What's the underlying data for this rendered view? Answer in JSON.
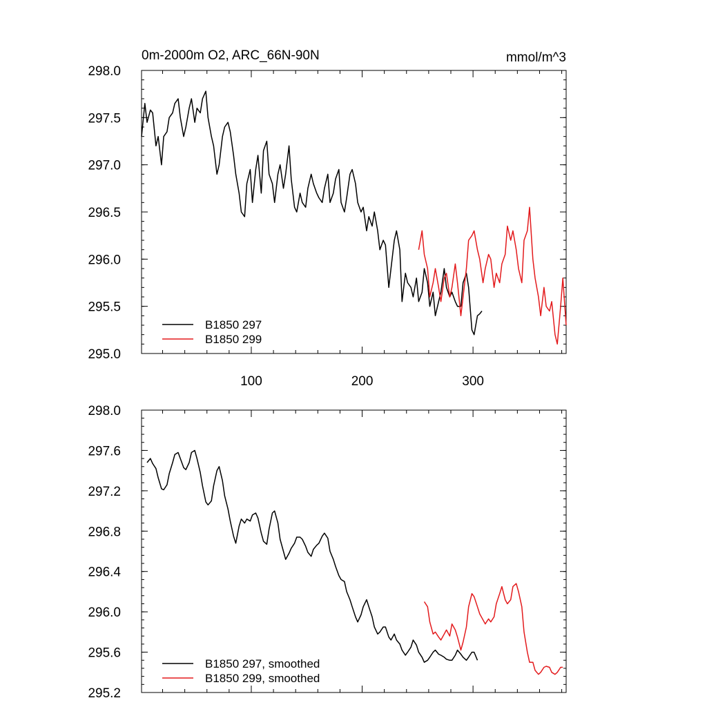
{
  "chart_data": [
    {
      "type": "line",
      "title": "0m-2000m O2, ARC_66N-90N",
      "units": "mmol/m^3",
      "xlim": [
        1,
        384
      ],
      "ylim": [
        295.0,
        298.0
      ],
      "x_ticks": [
        100,
        200,
        300
      ],
      "y_ticks": [
        "298.0",
        "297.5",
        "297.0",
        "296.5",
        "296.0",
        "295.5",
        "295.0"
      ],
      "y_tick_values": [
        298.0,
        297.5,
        297.0,
        296.5,
        296.0,
        295.5,
        295.0
      ],
      "legend": "bottom-left",
      "series": [
        {
          "name": "B1850 297",
          "color": "#000000",
          "x": [
            1,
            4,
            6,
            9,
            11,
            14,
            16,
            19,
            21,
            24,
            26,
            29,
            31,
            34,
            36,
            39,
            41,
            44,
            46,
            49,
            51,
            54,
            56,
            59,
            61,
            64,
            66,
            69,
            71,
            74,
            76,
            79,
            81,
            84,
            86,
            89,
            91,
            94,
            96,
            99,
            101,
            104,
            106,
            109,
            111,
            114,
            116,
            119,
            121,
            124,
            126,
            129,
            131,
            134,
            136,
            139,
            141,
            144,
            146,
            149,
            151,
            154,
            156,
            159,
            161,
            164,
            166,
            169,
            171,
            174,
            176,
            179,
            181,
            184,
            186,
            189,
            191,
            194,
            196,
            199,
            201,
            204,
            206,
            209,
            211,
            214,
            216,
            219,
            221,
            224,
            226,
            229,
            231,
            234,
            236,
            239,
            241,
            244,
            246,
            249,
            251,
            254,
            256,
            259,
            261,
            264,
            266,
            269,
            271,
            274,
            276,
            279,
            281,
            284,
            286,
            289,
            291,
            294,
            296,
            299,
            301,
            304,
            306,
            308
          ],
          "y": [
            297.3,
            297.65,
            297.45,
            297.58,
            297.55,
            297.2,
            297.3,
            297.0,
            297.3,
            297.35,
            297.5,
            297.55,
            297.65,
            297.7,
            297.5,
            297.3,
            297.4,
            297.6,
            297.7,
            297.45,
            297.6,
            297.55,
            297.7,
            297.78,
            297.5,
            297.3,
            297.2,
            296.9,
            297.0,
            297.3,
            297.4,
            297.45,
            297.35,
            297.1,
            296.9,
            296.7,
            296.5,
            296.45,
            296.8,
            296.95,
            296.6,
            296.95,
            297.1,
            296.7,
            297.15,
            297.25,
            296.9,
            296.8,
            296.6,
            296.9,
            297.0,
            296.75,
            296.9,
            297.2,
            296.85,
            296.55,
            296.5,
            296.7,
            296.6,
            296.55,
            296.75,
            296.9,
            296.8,
            296.7,
            296.65,
            296.6,
            296.75,
            296.9,
            296.6,
            296.7,
            296.85,
            296.95,
            296.6,
            296.5,
            296.65,
            296.9,
            296.95,
            296.8,
            296.6,
            296.5,
            296.55,
            296.3,
            296.45,
            296.35,
            296.5,
            296.3,
            296.1,
            296.2,
            296.15,
            295.7,
            295.9,
            296.2,
            296.3,
            296.1,
            295.55,
            295.85,
            295.75,
            295.7,
            295.6,
            295.8,
            295.55,
            295.65,
            295.9,
            295.75,
            295.5,
            295.65,
            295.4,
            295.55,
            295.65,
            295.9,
            295.7,
            295.6,
            295.65,
            295.55,
            295.5,
            295.5,
            295.75,
            295.85,
            295.7,
            295.25,
            295.2,
            295.4,
            295.42,
            295.45
          ]
        },
        {
          "name": "B1850 299",
          "color": "#e31a1c",
          "x": [
            251,
            254,
            256,
            259,
            261,
            264,
            266,
            269,
            271,
            274,
            276,
            279,
            281,
            284,
            286,
            289,
            291,
            294,
            296,
            299,
            301,
            304,
            306,
            309,
            311,
            314,
            316,
            319,
            321,
            324,
            326,
            329,
            331,
            334,
            336,
            339,
            341,
            344,
            346,
            349,
            351,
            354,
            356,
            359,
            361,
            364,
            366,
            369,
            371,
            374,
            376,
            379,
            381,
            384
          ],
          "y": [
            296.1,
            296.3,
            296.05,
            295.9,
            295.6,
            295.75,
            295.9,
            295.7,
            295.55,
            295.8,
            295.85,
            295.6,
            295.7,
            295.95,
            295.75,
            295.4,
            295.6,
            295.9,
            296.2,
            296.25,
            296.3,
            296.1,
            296.0,
            295.75,
            295.9,
            296.05,
            296.0,
            295.7,
            295.85,
            295.75,
            295.95,
            296.05,
            296.35,
            296.2,
            296.3,
            296.1,
            295.9,
            295.75,
            296.2,
            296.3,
            296.55,
            296.0,
            295.8,
            295.6,
            295.4,
            295.7,
            295.5,
            295.45,
            295.55,
            295.2,
            295.1,
            295.5,
            295.8,
            295.3
          ]
        }
      ]
    },
    {
      "type": "line",
      "xlim": [
        1,
        384
      ],
      "ylim": [
        295.2,
        298.0
      ],
      "x_ticks": [
        100,
        200,
        300
      ],
      "y_ticks": [
        "298.0",
        "297.6",
        "297.2",
        "296.8",
        "296.4",
        "296.0",
        "295.6",
        "295.2"
      ],
      "y_tick_values": [
        298.0,
        297.6,
        297.2,
        296.8,
        296.4,
        296.0,
        295.6,
        295.2
      ],
      "legend": "bottom-left",
      "series": [
        {
          "name": "B1850 297, smoothed",
          "color": "#000000",
          "x": [
            6,
            9,
            11,
            14,
            16,
            19,
            21,
            24,
            26,
            29,
            31,
            34,
            36,
            39,
            41,
            44,
            46,
            49,
            51,
            54,
            56,
            59,
            61,
            64,
            66,
            69,
            71,
            74,
            76,
            79,
            81,
            84,
            86,
            89,
            91,
            94,
            96,
            99,
            101,
            104,
            106,
            109,
            111,
            114,
            116,
            119,
            121,
            124,
            126,
            129,
            131,
            134,
            136,
            139,
            141,
            144,
            146,
            149,
            151,
            154,
            156,
            159,
            161,
            164,
            166,
            169,
            171,
            174,
            176,
            179,
            181,
            184,
            186,
            189,
            191,
            194,
            196,
            199,
            201,
            204,
            206,
            209,
            211,
            214,
            216,
            219,
            221,
            224,
            226,
            229,
            231,
            234,
            236,
            239,
            241,
            244,
            246,
            249,
            251,
            254,
            256,
            259,
            261,
            264,
            266,
            269,
            271,
            274,
            276,
            279,
            281,
            284,
            286,
            289,
            291,
            294,
            296,
            299,
            301,
            304
          ],
          "y": [
            297.48,
            297.52,
            297.47,
            297.42,
            297.33,
            297.22,
            297.21,
            297.26,
            297.37,
            297.48,
            297.56,
            297.58,
            297.52,
            297.43,
            297.41,
            297.48,
            297.58,
            297.6,
            297.52,
            297.38,
            297.25,
            297.09,
            297.06,
            297.1,
            297.25,
            297.4,
            297.44,
            297.3,
            297.15,
            297.02,
            296.9,
            296.75,
            296.68,
            296.85,
            296.92,
            296.88,
            296.92,
            296.9,
            296.96,
            296.98,
            296.93,
            296.78,
            296.7,
            296.67,
            296.82,
            296.98,
            297.0,
            296.88,
            296.72,
            296.6,
            296.52,
            296.58,
            296.63,
            296.68,
            296.74,
            296.74,
            296.72,
            296.65,
            296.59,
            296.55,
            296.62,
            296.66,
            296.68,
            296.75,
            296.78,
            296.73,
            296.6,
            296.52,
            296.45,
            296.36,
            296.32,
            296.3,
            296.2,
            296.12,
            296.05,
            295.95,
            295.9,
            295.97,
            296.05,
            296.12,
            296.05,
            295.95,
            295.85,
            295.78,
            295.8,
            295.85,
            295.85,
            295.75,
            295.72,
            295.78,
            295.72,
            295.68,
            295.62,
            295.57,
            295.6,
            295.65,
            295.72,
            295.67,
            295.6,
            295.55,
            295.5,
            295.52,
            295.55,
            295.6,
            295.62,
            295.58,
            295.57,
            295.55,
            295.53,
            295.52,
            295.52,
            295.57,
            295.62,
            295.58,
            295.55,
            295.52,
            295.55,
            295.6,
            295.6,
            295.52
          ]
        },
        {
          "name": "B1850 299, smoothed",
          "color": "#e31a1c",
          "x": [
            256,
            259,
            261,
            264,
            266,
            269,
            271,
            274,
            276,
            279,
            281,
            284,
            286,
            289,
            291,
            294,
            296,
            299,
            301,
            304,
            306,
            309,
            311,
            314,
            316,
            319,
            321,
            324,
            326,
            329,
            331,
            334,
            336,
            339,
            341,
            344,
            346,
            349,
            351,
            354,
            356,
            359,
            361,
            364,
            366,
            369,
            371,
            374,
            376,
            379,
            381
          ],
          "y": [
            296.1,
            296.05,
            295.9,
            295.78,
            295.8,
            295.75,
            295.72,
            295.78,
            295.82,
            295.76,
            295.88,
            295.82,
            295.75,
            295.62,
            295.7,
            295.85,
            296.05,
            296.18,
            296.15,
            296.05,
            295.98,
            295.92,
            295.88,
            295.93,
            295.9,
            295.95,
            296.08,
            296.18,
            296.25,
            296.12,
            296.08,
            296.12,
            296.25,
            296.28,
            296.2,
            296.05,
            295.8,
            295.6,
            295.5,
            295.5,
            295.42,
            295.38,
            295.4,
            295.45,
            295.46,
            295.45,
            295.4,
            295.38,
            295.4,
            295.45,
            295.45
          ]
        }
      ]
    }
  ]
}
